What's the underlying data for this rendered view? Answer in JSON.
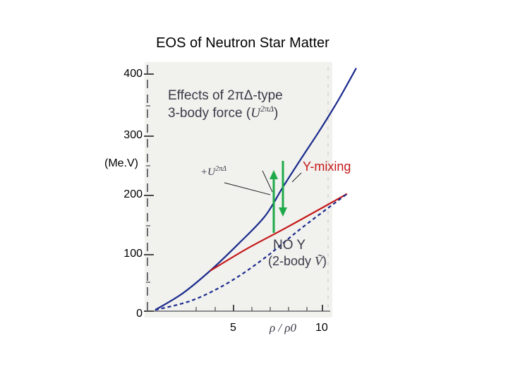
{
  "page_title": "EOS of Neutron Star Matter",
  "chart_data": {
    "type": "line",
    "title": "EOS of Neutron Star Matter",
    "ylabel": "(Me.V)",
    "xlabel": "ρ / ρ0",
    "xlim": [
      0.7,
      12.2
    ],
    "ylim": [
      0,
      400
    ],
    "y_ticks": [
      400,
      300,
      200,
      100,
      0
    ],
    "x_ticks": [
      5,
      10
    ],
    "series": [
      {
        "name": "With 3-body force U^2πΔ",
        "color": "#1a2a8c",
        "style": "solid",
        "x": [
          1,
          2.5,
          4,
          5.5,
          7,
          8,
          9,
          10,
          11,
          12
        ],
        "y": [
          2,
          30,
          68,
          112,
          160,
          210,
          258,
          305,
          355,
          410
        ]
      },
      {
        "name": "Y-mixing",
        "color": "#c41a1a",
        "style": "solid",
        "x": [
          4,
          6,
          8,
          10,
          11.5
        ],
        "y": [
          68,
          105,
          138,
          172,
          198
        ]
      },
      {
        "name": "NO Y (2-body Ṽ)",
        "color": "#1a2a8c",
        "style": "dashed",
        "x": [
          1,
          3,
          5,
          7,
          9,
          11.5
        ],
        "y": [
          2,
          18,
          48,
          90,
          140,
          198
        ]
      }
    ],
    "annotations": {
      "effects_line1": "Effects of 2πΔ-type",
      "effects_line2": "3-body force (",
      "effects_u": "U",
      "effects_sup": "2πΔ",
      "effects_close": ")",
      "u_label": "+U",
      "u_sup": "2πΔ",
      "y_mixing": "Y-mixing",
      "no_y": "NO Y",
      "two_body": "(2-body ",
      "two_body_v": "Ṽ",
      "two_body_close": ")"
    },
    "arrows": {
      "color": "#1faa4a"
    }
  }
}
